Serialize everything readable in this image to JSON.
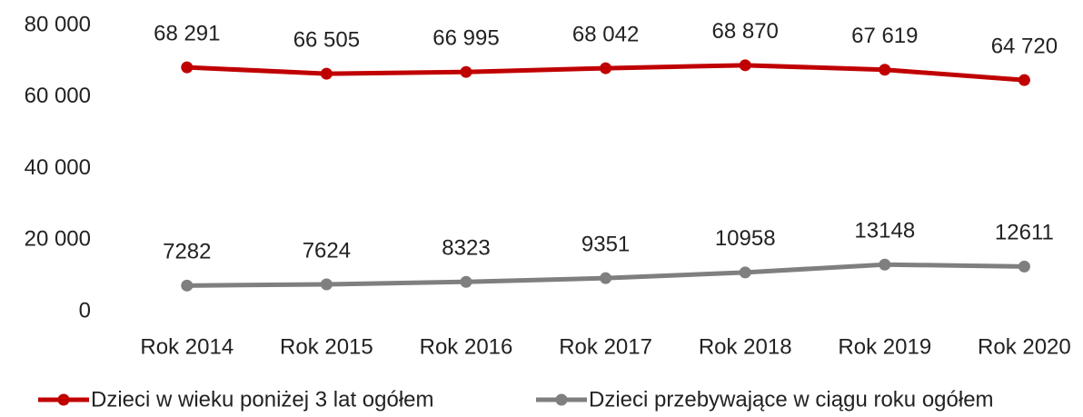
{
  "chart_data": {
    "type": "line",
    "categories": [
      "Rok 2014",
      "Rok 2015",
      "Rok 2016",
      "Rok 2017",
      "Rok 2018",
      "Rok 2019",
      "Rok 2020"
    ],
    "series": [
      {
        "name": "Dzieci w wieku poniżej 3 lat ogółem",
        "color": "#c00000",
        "values": [
          68291,
          66505,
          66995,
          68042,
          68870,
          67619,
          64720
        ],
        "value_labels": [
          "68 291",
          "66 505",
          "66 995",
          "68 042",
          "68 870",
          "67 619",
          "64 720"
        ]
      },
      {
        "name": "Dzieci przebywające w ciągu roku ogółem",
        "color": "#7f7f7f",
        "values": [
          7282,
          7624,
          8323,
          9351,
          10958,
          13148,
          12611
        ]
      }
    ],
    "ylim": [
      0,
      80000
    ],
    "yticks": [
      0,
      {
        "value": 20000,
        "label": "20 000"
      },
      {
        "value": 40000,
        "label": "40 000"
      },
      {
        "value": 60000,
        "label": "60 000"
      },
      {
        "value": 80000,
        "label": "80 000"
      }
    ],
    "grid": false,
    "legend": "bottom"
  }
}
